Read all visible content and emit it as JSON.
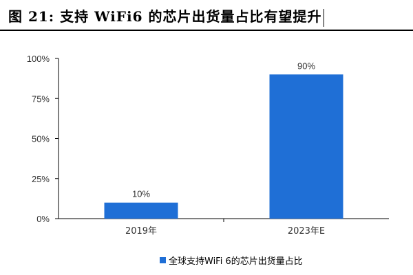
{
  "figure": {
    "title": "图 21:  支持 WiFi6 的芯片出货量占比有望提升"
  },
  "colors": {
    "bar": "#1f6fd6",
    "axis": "#000000",
    "text": "#333333"
  },
  "chart_data": {
    "type": "bar",
    "categories": [
      "2019年",
      "2023年E"
    ],
    "values": [
      10,
      90
    ],
    "value_labels": [
      "10%",
      "90%"
    ],
    "ylim": [
      0,
      100
    ],
    "yticks": [
      0,
      25,
      50,
      75,
      100
    ],
    "ytick_labels": [
      "0%",
      "25%",
      "50%",
      "75%",
      "100%"
    ],
    "xlabel": "",
    "ylabel": "",
    "grid": false,
    "legend": {
      "position": "bottom",
      "label": "全球支持WiFi 6的芯片出货量占比"
    }
  }
}
